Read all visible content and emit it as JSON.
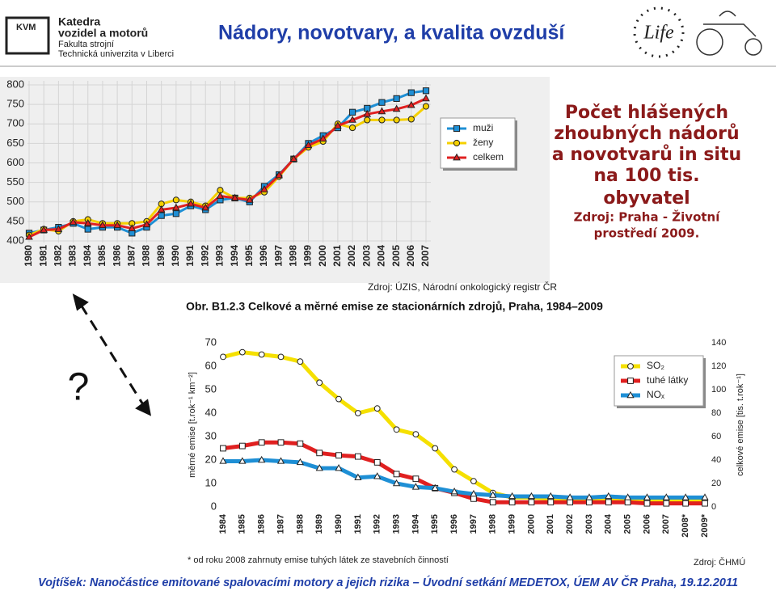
{
  "header": {
    "logo_abbr": "KVM",
    "dept_line1": "Katedra",
    "dept_line2": "vozidel a motorů",
    "faculty": "Fakulta strojní",
    "university": "Technická univerzita v Liberci",
    "title": "Nádory, novotvary, a kvalita ovzduší",
    "life_logo": "Life"
  },
  "chart_data": [
    {
      "type": "line",
      "categories": [
        "1980",
        "1981",
        "1982",
        "1983",
        "1984",
        "1985",
        "1986",
        "1987",
        "1988",
        "1989",
        "1990",
        "1991",
        "1992",
        "1993",
        "1994",
        "1995",
        "1996",
        "1997",
        "1998",
        "1999",
        "2000",
        "2001",
        "2002",
        "2003",
        "2004",
        "2005",
        "2006",
        "2007"
      ],
      "series": [
        {
          "name": "muži",
          "color": "#1e8fd5",
          "marker": "square",
          "values": [
            420,
            428,
            435,
            445,
            430,
            435,
            435,
            420,
            435,
            465,
            470,
            490,
            480,
            505,
            510,
            500,
            540,
            570,
            610,
            650,
            670,
            690,
            730,
            740,
            755,
            765,
            780,
            785
          ]
        },
        {
          "name": "ženy",
          "color": "#f5d000",
          "marker": "circle",
          "values": [
            415,
            430,
            425,
            450,
            455,
            445,
            445,
            445,
            450,
            495,
            505,
            500,
            490,
            530,
            510,
            510,
            525,
            565,
            610,
            640,
            655,
            700,
            690,
            710,
            710,
            710,
            712,
            745
          ]
        },
        {
          "name": "celkem",
          "color": "#e02020",
          "marker": "triangle",
          "values": [
            410,
            428,
            430,
            448,
            445,
            440,
            440,
            432,
            442,
            480,
            485,
            495,
            485,
            515,
            510,
            505,
            532,
            568,
            610,
            645,
            662,
            695,
            710,
            725,
            732,
            738,
            748,
            765
          ]
        }
      ],
      "ylim": [
        400,
        800
      ],
      "yticks": [
        400,
        450,
        500,
        550,
        600,
        650,
        700,
        750,
        800
      ],
      "grid": true,
      "source": "Zdroj: ÚZIS, Národní onkologický registr ČR"
    },
    {
      "type": "line",
      "title": "Obr. B1.2.3  Celkové a měrné emise ze stacionárních zdrojů, Praha, 1984–2009",
      "categories": [
        "1984",
        "1985",
        "1986",
        "1987",
        "1988",
        "1989",
        "1990",
        "1991",
        "1992",
        "1993",
        "1994",
        "1995",
        "1996",
        "1997",
        "1998",
        "1999",
        "2000",
        "2001",
        "2002",
        "2003",
        "2004",
        "2005",
        "2006",
        "2007",
        "2008*",
        "2009*"
      ],
      "series": [
        {
          "name": "SO₂",
          "color": "#f5e000",
          "marker": "circle",
          "values": [
            64,
            66,
            65,
            64,
            62,
            53,
            46,
            40,
            42,
            33,
            31,
            25,
            16,
            11,
            6,
            4,
            4,
            3.5,
            3,
            3,
            3,
            3,
            3,
            3,
            3,
            3
          ]
        },
        {
          "name": "tuhé látky",
          "color": "#e02020",
          "marker": "square",
          "values": [
            25,
            26,
            27.5,
            27.5,
            27,
            23,
            22,
            21.5,
            19,
            14,
            12,
            8,
            6,
            3.5,
            2,
            2,
            2,
            2,
            2,
            2,
            2,
            2,
            1.5,
            1.5,
            1.5,
            1.5
          ]
        },
        {
          "name": "NOₓ",
          "color": "#1e8fd5",
          "marker": "triangle",
          "values": [
            19.5,
            19.5,
            20,
            19.5,
            19,
            16.5,
            16.5,
            12.5,
            13,
            10,
            8.5,
            8,
            6.5,
            5.5,
            5,
            4.5,
            4.5,
            4.5,
            4,
            4,
            4.5,
            4,
            4,
            4,
            4,
            4
          ]
        }
      ],
      "y_label": "měrné emise [t.rok⁻¹ km⁻²]",
      "ylim": [
        0,
        70
      ],
      "yticks": [
        0,
        10,
        20,
        30,
        40,
        50,
        60,
        70
      ],
      "y2_label": "celkové emise [tis. t.rok⁻¹]",
      "y2lim": [
        0,
        140
      ],
      "y2ticks": [
        0,
        20,
        40,
        60,
        80,
        100,
        120,
        140
      ],
      "grid": false,
      "note": "* od roku 2008 zahrnuty emise tuhých látek ze stavebních činností",
      "source": "Zdroj: ČHMÚ"
    }
  ],
  "annotation": {
    "lines": [
      "Počet hlášených",
      "zhoubných nádorů",
      "a novotvarů in situ",
      "na 100 tis.",
      "obyvatel"
    ],
    "source_lines": [
      "Zdroj: Praha - Životní",
      "prostředí 2009."
    ]
  },
  "question_mark": "?",
  "footer": "Vojtíšek: Nanočástice emitované spalovacími motory a jejich rizika – Úvodní setkání MEDETOX, ÚEM AV ČR Praha, 19.12.2011"
}
